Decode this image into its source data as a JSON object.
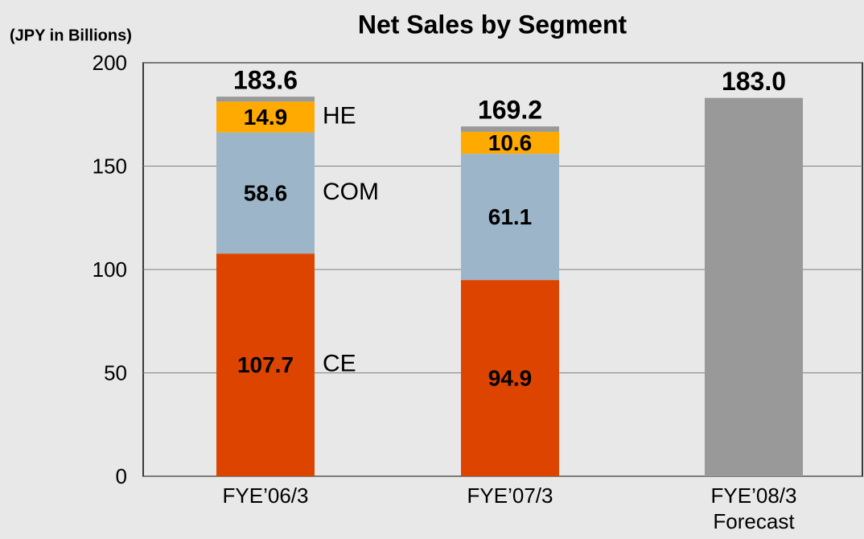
{
  "chart_data": {
    "type": "stacked_bar",
    "title": "Net Sales by Segment",
    "y_label": "(JPY in Billions)",
    "categories": [
      "FYE’06/3",
      "FYE’07/3",
      "FYE’08/3\nForecast"
    ],
    "series": [
      {
        "name": "CE",
        "color": "#dd4400",
        "values": [
          107.7,
          94.9,
          null
        ]
      },
      {
        "name": "COM",
        "color": "#9db5c8",
        "values": [
          58.6,
          61.1,
          null
        ]
      },
      {
        "name": "HE",
        "color": "#ffaa00",
        "values": [
          14.9,
          10.6,
          null
        ]
      },
      {
        "color": "#999999",
        "values": [
          2.4,
          2.6,
          183.0
        ]
      }
    ],
    "totals": [
      183.6,
      169.2,
      183.0
    ],
    "totals_value_labels": [
      "183.6",
      "169.2",
      "183.0"
    ],
    "ylim": [
      0,
      200
    ],
    "yticks": [
      0,
      50,
      100,
      150,
      200
    ],
    "grid": true
  }
}
